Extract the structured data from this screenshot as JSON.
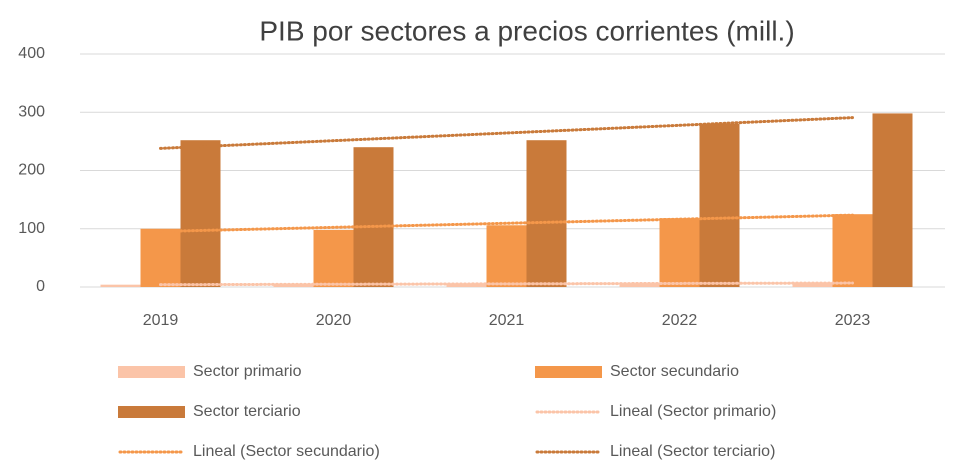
{
  "chart_data": {
    "type": "bar",
    "title": "PIB por sectores a precios corrientes (mill.)",
    "categories": [
      "2019",
      "2020",
      "2021",
      "2022",
      "2023"
    ],
    "series": [
      {
        "name": "Sector primario",
        "color": "#fbc4a8",
        "values": [
          4,
          5,
          5,
          6,
          7
        ],
        "trendline": {
          "name": "Lineal (Sector primario)",
          "color": "#fbc4a8"
        }
      },
      {
        "name": "Sector secundario",
        "color": "#f4974a",
        "values": [
          100,
          98,
          106,
          118,
          125
        ],
        "trendline": {
          "name": "Lineal (Sector secundario)",
          "color": "#f4974a"
        }
      },
      {
        "name": "Sector terciario",
        "color": "#c97a3a",
        "values": [
          252,
          240,
          252,
          280,
          298
        ],
        "trendline": {
          "name": "Lineal (Sector terciario)",
          "color": "#c97a3a"
        }
      }
    ],
    "ylim": [
      0,
      400
    ],
    "yticks": [
      0,
      100,
      200,
      300,
      400
    ],
    "grid": true
  }
}
